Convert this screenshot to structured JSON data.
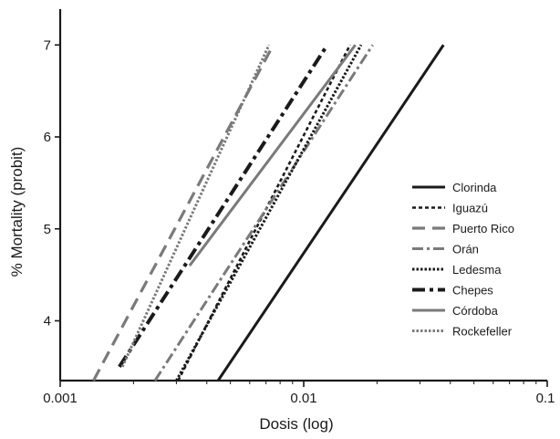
{
  "chart_data": {
    "type": "line",
    "xlabel": "Dosis (log)",
    "ylabel": "% Mortality (probit)",
    "x_scale": "log",
    "xlim": [
      0.001,
      0.1
    ],
    "ylim": [
      3.35,
      7.35
    ],
    "x_ticks": [
      {
        "value": 0.001,
        "label": "0.001"
      },
      {
        "value": 0.01,
        "label": "0.01"
      },
      {
        "value": 0.1,
        "label": "0.1"
      }
    ],
    "y_ticks": [
      {
        "value": 4,
        "label": "4"
      },
      {
        "value": 5,
        "label": "5"
      },
      {
        "value": 6,
        "label": "6"
      },
      {
        "value": 7,
        "label": "7"
      }
    ],
    "grid": false,
    "legend_position": "right",
    "series": [
      {
        "name": "Clorinda",
        "color": "#1a1a1a",
        "dash": "solid",
        "x": [
          0.00445,
          0.0375
        ],
        "y": [
          3.35,
          7.0
        ]
      },
      {
        "name": "Iguazú",
        "color": "#1a1a1a",
        "dash": "dash-short",
        "x": [
          0.00305,
          0.0155
        ],
        "y": [
          3.35,
          7.0
        ]
      },
      {
        "name": "Puerto Rico",
        "color": "#7a7a7a",
        "dash": "dash-long",
        "x": [
          0.00137,
          0.0075
        ],
        "y": [
          3.35,
          7.0
        ]
      },
      {
        "name": "Orán",
        "color": "#7a7a7a",
        "dash": "dash-dot",
        "x": [
          0.00245,
          0.0192
        ],
        "y": [
          3.35,
          7.0
        ]
      },
      {
        "name": "Ledesma",
        "color": "#1a1a1a",
        "dash": "dot",
        "x": [
          0.003,
          0.0172
        ],
        "y": [
          3.35,
          7.0
        ]
      },
      {
        "name": "Chepes",
        "color": "#1a1a1a",
        "dash": "dash-dot-bold",
        "x": [
          0.00175,
          0.0125
        ],
        "y": [
          3.5,
          7.0
        ]
      },
      {
        "name": "Córdoba",
        "color": "#7a7a7a",
        "dash": "solid",
        "x": [
          0.0034,
          0.0163
        ],
        "y": [
          4.6,
          7.0
        ]
      },
      {
        "name": "Rockefeller",
        "color": "#7a7a7a",
        "dash": "dot",
        "x": [
          0.0018,
          0.0072
        ],
        "y": [
          3.5,
          7.0
        ]
      }
    ]
  }
}
